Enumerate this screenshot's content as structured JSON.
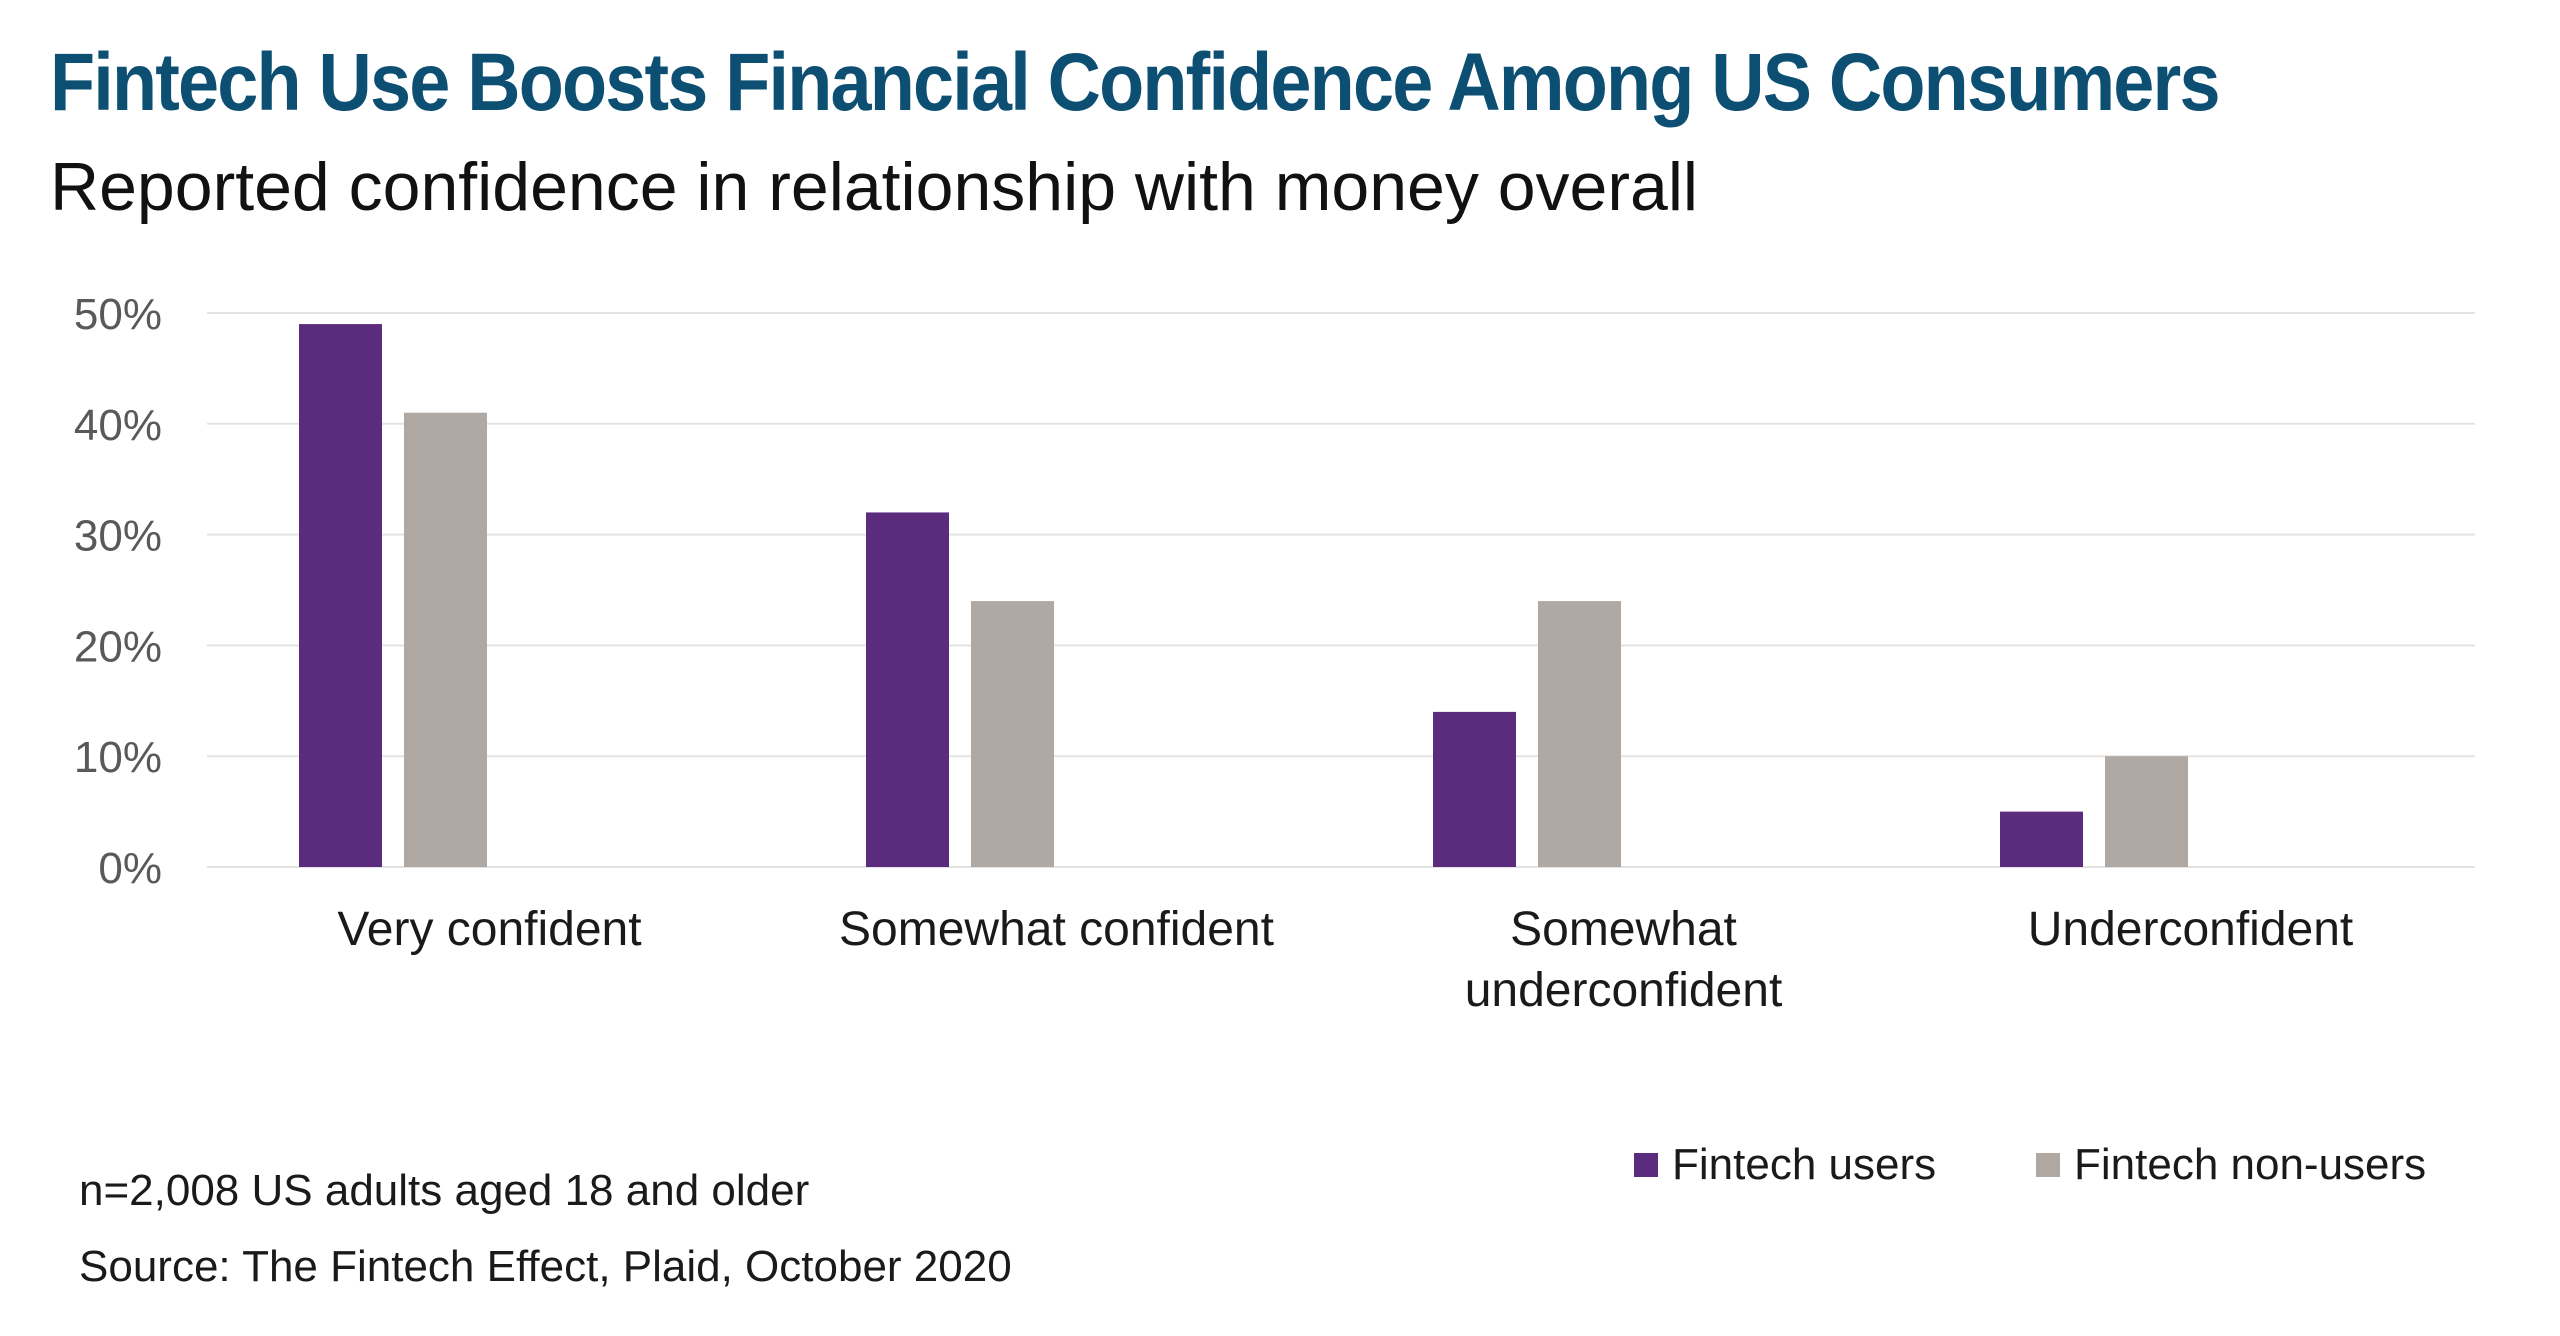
{
  "title": "Fintech Use Boosts Financial Confidence Among US Consumers",
  "subtitle": "Reported confidence in relationship with money overall",
  "footnote": "n=2,008 US adults aged 18 and older",
  "source": "Source: The Fintech Effect, Plaid, October 2020",
  "colors": {
    "title": "#0d4f73",
    "fintech_users": "#5b2c7d",
    "fintech_non_users": "#b0a8a3",
    "grid": "#e3e3e3",
    "tick_text": "#595959",
    "category_text": "#1a1a1a"
  },
  "chart_data": {
    "type": "bar",
    "title": "Fintech Use Boosts Financial Confidence Among US Consumers",
    "subtitle": "Reported confidence in relationship with money overall",
    "categories": [
      [
        "Very confident"
      ],
      [
        "Somewhat confident"
      ],
      [
        "Somewhat",
        "underconfident"
      ],
      [
        "Underconfident"
      ]
    ],
    "series": [
      {
        "name": "Fintech users",
        "values": [
          49,
          32,
          14,
          5
        ]
      },
      {
        "name": "Fintech non-users",
        "values": [
          41,
          24,
          24,
          10
        ]
      }
    ],
    "yticks": [
      "0%",
      "10%",
      "20%",
      "30%",
      "40%",
      "50%"
    ],
    "ylim": [
      0,
      50
    ],
    "grid": true,
    "legend_position": "bottom-right"
  }
}
